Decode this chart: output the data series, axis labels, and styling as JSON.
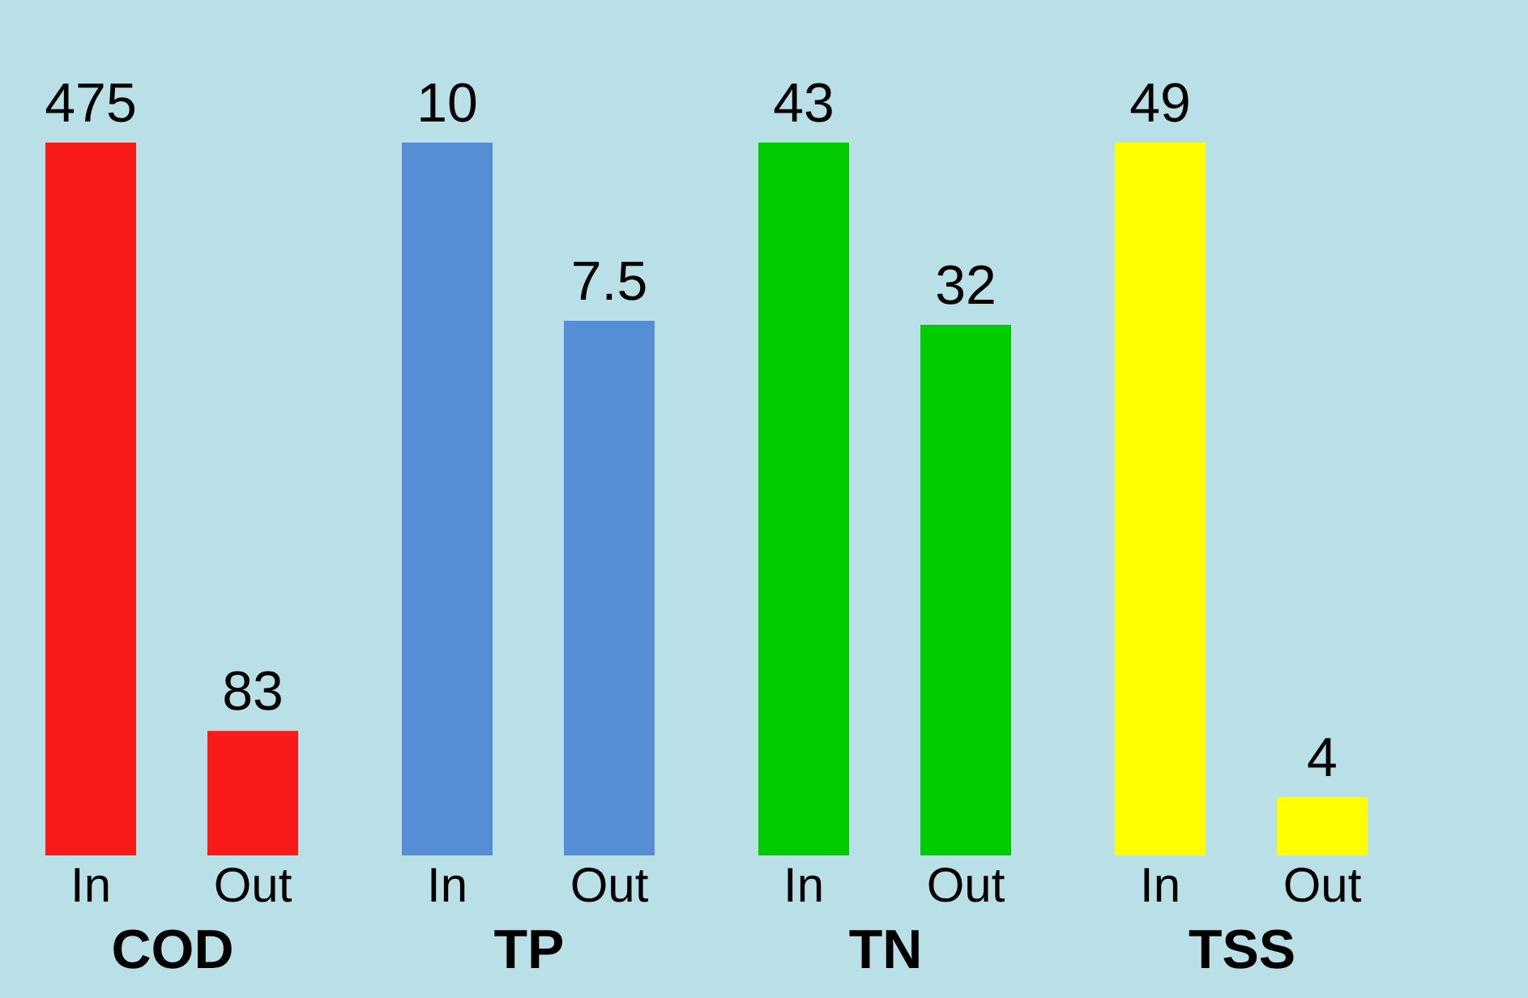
{
  "chart_data": [
    {
      "type": "bar",
      "xlabel": "COD",
      "categories": [
        "In",
        "Out"
      ],
      "values": [
        475,
        83
      ],
      "colors": [
        "#f91a1a",
        "#f91a1a"
      ],
      "data_labels": true,
      "tick_labels": "x"
    },
    {
      "type": "bar",
      "xlabel": "TP",
      "categories": [
        "In",
        "Out"
      ],
      "values": [
        10,
        7.5
      ],
      "colors": [
        "#558ed5",
        "#558ed5"
      ],
      "data_labels": true,
      "tick_labels": "x"
    },
    {
      "type": "bar",
      "xlabel": "TN",
      "categories": [
        "In",
        "Out"
      ],
      "values": [
        43,
        32
      ],
      "colors": [
        "#00cc00",
        "#00cc00"
      ],
      "data_labels": true,
      "tick_labels": "x"
    },
    {
      "type": "bar",
      "xlabel": "TSS",
      "categories": [
        "In",
        "Out"
      ],
      "values": [
        49,
        4
      ],
      "colors": [
        "#ffff00",
        "#ffff00"
      ],
      "data_labels": true,
      "tick_labels": "x"
    }
  ]
}
